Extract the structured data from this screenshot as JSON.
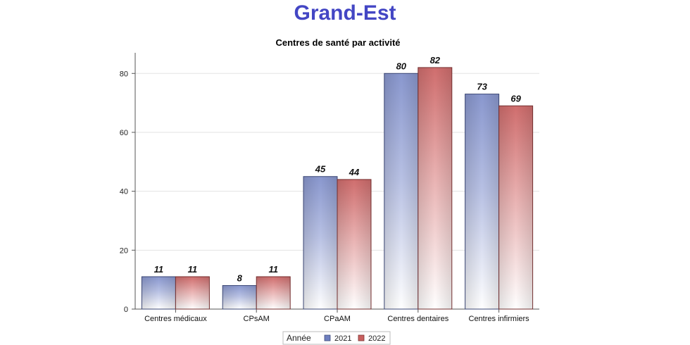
{
  "page_title": "Grand-Est",
  "chart_data": {
    "type": "bar",
    "title": "Centres de santé par activité",
    "categories": [
      "Centres médicaux",
      "CPsAM",
      "CPaAM",
      "Centres dentaires",
      "Centres infirmiers"
    ],
    "series": [
      {
        "name": "2021",
        "values": [
          11,
          8,
          45,
          80,
          73
        ],
        "color": "#6e7fbf"
      },
      {
        "name": "2022",
        "values": [
          11,
          11,
          44,
          82,
          69
        ],
        "color": "#c9605f"
      }
    ],
    "ylim": [
      0,
      87
    ],
    "yticks": [
      0,
      20,
      40,
      60,
      80
    ],
    "grid": true,
    "legend_title": "Année",
    "legend_position": "bottom-center",
    "xlabel": "",
    "ylabel": ""
  }
}
